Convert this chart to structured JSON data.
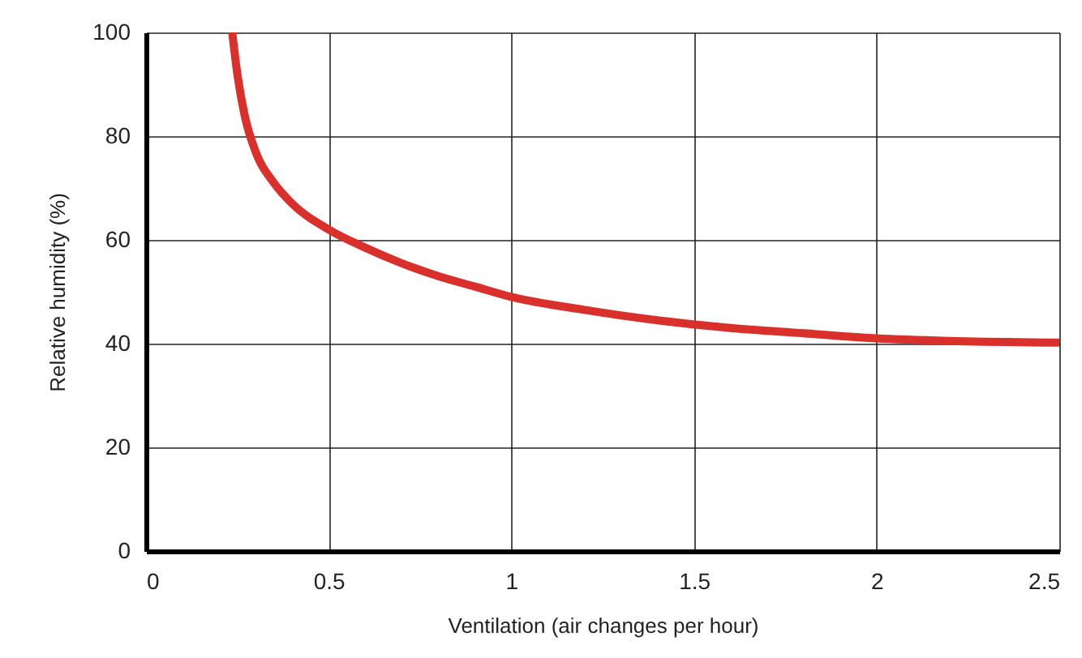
{
  "chart_data": {
    "type": "line",
    "xlabel": "Ventilation (air changes per hour)",
    "ylabel": "Relative humidity (%)",
    "x": [
      0.236,
      0.25,
      0.27,
      0.3,
      0.35,
      0.4,
      0.5,
      0.6,
      0.7,
      0.8,
      0.9,
      1.0,
      1.2,
      1.4,
      1.6,
      1.8,
      2.0,
      2.2,
      2.5
    ],
    "series": [
      {
        "color": "#d9302c",
        "values": [
          100,
          92,
          84,
          77,
          71,
          67,
          62,
          58.5,
          55.5,
          53,
          51,
          49,
          46.5,
          44.5,
          43,
          42,
          41,
          40.5,
          40.2
        ]
      }
    ],
    "xlim": [
      0,
      2.5
    ],
    "xticks": [
      0,
      0.5,
      1,
      1.5,
      2,
      2.5
    ],
    "ylim": [
      0,
      100
    ],
    "yticks": [
      0,
      20,
      40,
      60,
      80,
      100
    ],
    "grid": true,
    "marker": "none",
    "line_style": "solid"
  }
}
